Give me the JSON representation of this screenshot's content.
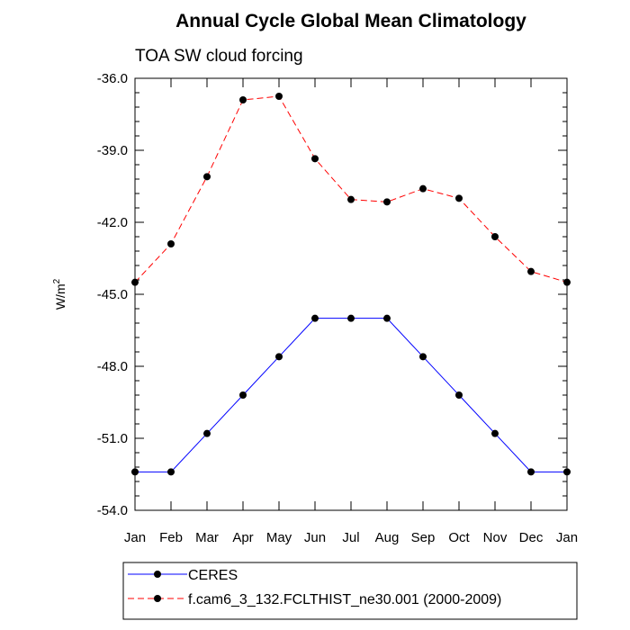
{
  "chart_data": {
    "type": "line",
    "title": "Annual Cycle Global Mean Climatology",
    "subtitle": "TOA SW cloud forcing",
    "xlabel": "",
    "ylabel": "W/m",
    "ylabel_superscript": "2",
    "categories": [
      "Jan",
      "Feb",
      "Mar",
      "Apr",
      "May",
      "Jun",
      "Jul",
      "Aug",
      "Sep",
      "Oct",
      "Nov",
      "Dec",
      "Jan"
    ],
    "ylim": [
      -54.0,
      -36.0
    ],
    "yticks": [
      "-36.0",
      "-39.0",
      "-42.0",
      "-45.0",
      "-48.0",
      "-51.0",
      "-54.0"
    ],
    "ytick_values": [
      -36,
      -39,
      -42,
      -45,
      -48,
      -51,
      -54
    ],
    "grid": false,
    "legend_position": "bottom",
    "series": [
      {
        "name": "CERES",
        "color": "#0000ff",
        "line_style": "solid",
        "marker": "filled-circle",
        "values": [
          -52.4,
          -52.4,
          -50.8,
          -49.2,
          -47.6,
          -46.0,
          -46.0,
          -46.0,
          -47.6,
          -49.2,
          -50.8,
          -52.4,
          -52.4
        ]
      },
      {
        "name": "f.cam6_3_132.FCLTHIST_ne30.001 (2000-2009)",
        "color": "#ff0000",
        "line_style": "dashed",
        "marker": "filled-circle",
        "values": [
          -44.5,
          -42.9,
          -40.1,
          -36.9,
          -36.75,
          -39.35,
          -41.05,
          -41.15,
          -40.6,
          -41.0,
          -42.6,
          -44.05,
          -44.5
        ]
      }
    ]
  }
}
